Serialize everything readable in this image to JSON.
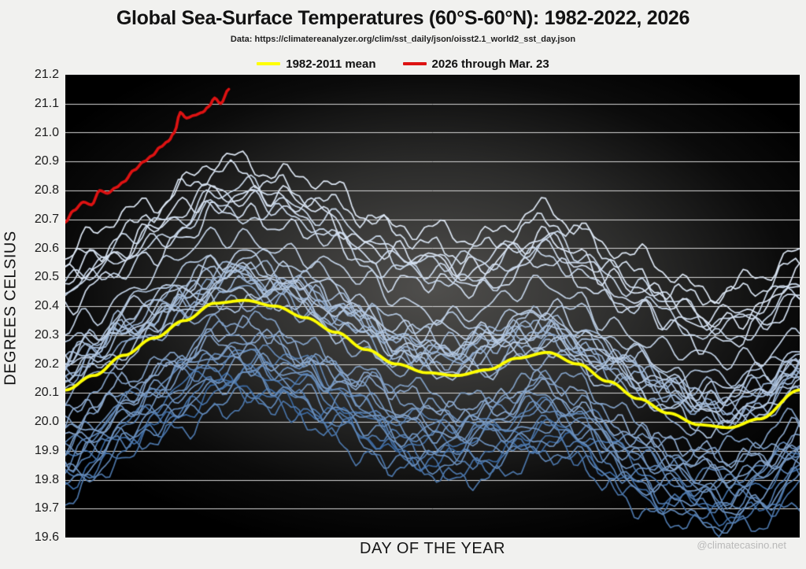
{
  "header": {
    "title": "Global Sea-Surface Temperatures (60°S-60°N): 1982-2022, 2026",
    "subtitle": "Data: https://climatereanalyzer.org/clim/sst_daily/json/oisst2.1_world2_sst_day.json"
  },
  "legend": [
    {
      "label": "1982-2011 mean",
      "color": "#ffff00"
    },
    {
      "label": "2026 through Mar. 23",
      "color": "#dd1212"
    }
  ],
  "watermark": "@climatecasino.net",
  "chart_data": {
    "type": "line",
    "title": "Global Sea-Surface Temperatures (60°S-60°N): 1982-2022, 2026",
    "xlabel": "DAY OF THE YEAR",
    "ylabel": "DEGREES CELSIUS",
    "xlim": [
      1,
      365
    ],
    "ylim": [
      19.6,
      21.2
    ],
    "y_ticks": [
      21.2,
      21.1,
      21.0,
      20.9,
      20.8,
      20.7,
      20.6,
      20.5,
      20.4,
      20.3,
      20.2,
      20.1,
      20.0,
      19.9,
      19.8,
      19.7,
      19.6
    ],
    "x_tick_labels_shown": false,
    "grid": "horizontal",
    "legend_position": "top-center",
    "series": [
      {
        "name": "1982-2011 mean",
        "role": "climatology-mean",
        "color": "#ffff00",
        "days": [
          1,
          15,
          30,
          45,
          60,
          75,
          90,
          105,
          120,
          135,
          150,
          165,
          180,
          195,
          210,
          225,
          240,
          255,
          270,
          285,
          300,
          315,
          330,
          345,
          365
        ],
        "values": [
          20.11,
          20.16,
          20.23,
          20.29,
          20.35,
          20.41,
          20.42,
          20.4,
          20.36,
          20.31,
          20.25,
          20.2,
          20.17,
          20.16,
          20.18,
          20.22,
          20.24,
          20.2,
          20.14,
          20.08,
          20.03,
          19.99,
          19.98,
          20.01,
          20.11
        ]
      },
      {
        "name": "2026 through Mar. 23",
        "role": "partial-current-year",
        "color": "#dd1212",
        "days": [
          1,
          5,
          10,
          14,
          18,
          22,
          26,
          30,
          35,
          40,
          44,
          48,
          52,
          55,
          58,
          61,
          65,
          69,
          72,
          75,
          78,
          82
        ],
        "values": [
          20.69,
          20.73,
          20.76,
          20.75,
          20.8,
          20.79,
          20.81,
          20.83,
          20.87,
          20.9,
          20.92,
          20.95,
          20.97,
          21.0,
          21.07,
          21.05,
          21.06,
          21.07,
          21.09,
          21.12,
          21.1,
          21.15
        ]
      }
    ],
    "background_years": {
      "note": "41 individual year traces 1982-2022; estimated mean offset (°C) of each year relative to the 1982-2011 mean curve; colored dark steel blue (oldest) to pale blue-white (most recent)",
      "years": [
        1982,
        1983,
        1984,
        1985,
        1986,
        1987,
        1988,
        1989,
        1990,
        1991,
        1992,
        1993,
        1994,
        1995,
        1996,
        1997,
        1998,
        1999,
        2000,
        2001,
        2002,
        2003,
        2004,
        2005,
        2006,
        2007,
        2008,
        2009,
        2010,
        2011,
        2012,
        2013,
        2014,
        2015,
        2016,
        2017,
        2018,
        2019,
        2020,
        2021,
        2022
      ],
      "offsets_from_mean": [
        -0.3,
        -0.24,
        -0.32,
        -0.36,
        -0.28,
        -0.18,
        -0.24,
        -0.32,
        -0.18,
        -0.2,
        -0.28,
        -0.24,
        -0.19,
        -0.12,
        -0.17,
        -0.08,
        0.04,
        -0.14,
        -0.11,
        0.0,
        0.07,
        0.09,
        0.06,
        0.11,
        0.09,
        0.07,
        0.01,
        0.11,
        0.16,
        0.04,
        0.09,
        0.14,
        0.22,
        0.32,
        0.38,
        0.34,
        0.3,
        0.38,
        0.44,
        0.38,
        0.48
      ]
    },
    "style": {
      "year_color_oldest": "#3a68a0",
      "year_color_recent": "#dde7f4",
      "mean_color": "#ffff00",
      "current_year_color": "#dd1212",
      "gridline_color": "#d6d6d6",
      "plot_background": "black radial-gray gradient"
    }
  }
}
